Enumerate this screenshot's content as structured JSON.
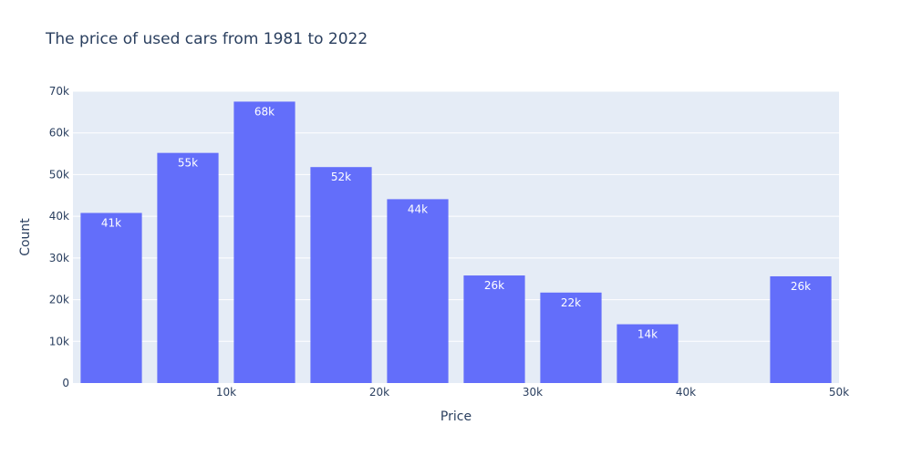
{
  "chart_data": {
    "type": "bar",
    "title": "The price of used cars from 1981 to 2022",
    "xlabel": "Price",
    "ylabel": "Count",
    "x": [
      2500,
      7500,
      12500,
      17500,
      22500,
      27500,
      32500,
      37500,
      42500,
      47500
    ],
    "values": [
      40800,
      55200,
      67500,
      51800,
      44100,
      25800,
      21700,
      14100,
      0,
      25600
    ],
    "data_labels": [
      "41k",
      "55k",
      "68k",
      "52k",
      "44k",
      "26k",
      "22k",
      "14k",
      "",
      "26k"
    ],
    "xticks": [
      10000,
      20000,
      30000,
      40000,
      50000
    ],
    "xtick_labels": [
      "10k",
      "20k",
      "30k",
      "40k",
      "50k"
    ],
    "yticks": [
      0,
      10000,
      20000,
      30000,
      40000,
      50000,
      60000,
      70000
    ],
    "ytick_labels": [
      "0",
      "10k",
      "20k",
      "30k",
      "40k",
      "50k",
      "60k",
      "70k"
    ],
    "xlim": [
      0,
      50000
    ],
    "ylim": [
      0,
      70000
    ],
    "grid": true,
    "legend": false,
    "colors": {
      "bar": "#636efa",
      "plot_bg": "#e5ecf6",
      "grid": "#ffffff",
      "text": "#2a3f5f"
    }
  }
}
